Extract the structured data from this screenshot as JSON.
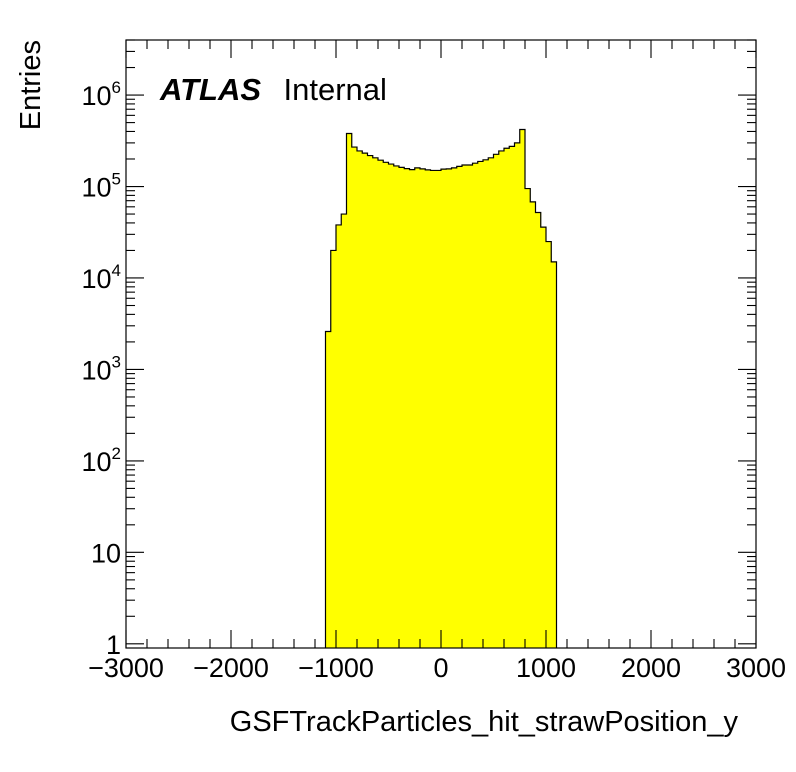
{
  "chart_data": {
    "type": "histogram",
    "xlabel": "GSFTrackParticles_hit_strawPosition_y",
    "ylabel": "Entries",
    "annotation": {
      "experiment": "ATLAS",
      "status": "Internal"
    },
    "xlim": [
      -3000,
      3000
    ],
    "ylim": [
      0.9,
      4000000
    ],
    "yscale": "log",
    "bin_width": 50,
    "x_ticks": [
      {
        "value": -3000,
        "label": "−3000"
      },
      {
        "value": -2000,
        "label": "−2000"
      },
      {
        "value": -1000,
        "label": "−1000"
      },
      {
        "value": 0,
        "label": "0"
      },
      {
        "value": 1000,
        "label": "1000"
      },
      {
        "value": 2000,
        "label": "2000"
      },
      {
        "value": 3000,
        "label": "3000"
      }
    ],
    "y_ticks": [
      {
        "value": 1,
        "base": "1",
        "exp": ""
      },
      {
        "value": 10,
        "base": "10",
        "exp": ""
      },
      {
        "value": 100,
        "base": "10",
        "exp": "2"
      },
      {
        "value": 1000,
        "base": "10",
        "exp": "3"
      },
      {
        "value": 10000,
        "base": "10",
        "exp": "4"
      },
      {
        "value": 100000,
        "base": "10",
        "exp": "5"
      },
      {
        "value": 1000000,
        "base": "10",
        "exp": "6"
      }
    ],
    "fill_color": "#ffff00",
    "line_color": "#000000",
    "grid": false,
    "bins": [
      {
        "x_low": -1100,
        "x_high": -1050,
        "value": 2600
      },
      {
        "x_low": -1050,
        "x_high": -1000,
        "value": 20000
      },
      {
        "x_low": -1000,
        "x_high": -950,
        "value": 38000
      },
      {
        "x_low": -950,
        "x_high": -900,
        "value": 50000
      },
      {
        "x_low": -900,
        "x_high": -850,
        "value": 380000
      },
      {
        "x_low": -850,
        "x_high": -800,
        "value": 270000
      },
      {
        "x_low": -800,
        "x_high": -750,
        "value": 245000
      },
      {
        "x_low": -750,
        "x_high": -700,
        "value": 232000
      },
      {
        "x_low": -700,
        "x_high": -650,
        "value": 218000
      },
      {
        "x_low": -650,
        "x_high": -600,
        "value": 206000
      },
      {
        "x_low": -600,
        "x_high": -550,
        "value": 194000
      },
      {
        "x_low": -550,
        "x_high": -500,
        "value": 184000
      },
      {
        "x_low": -500,
        "x_high": -450,
        "value": 176000
      },
      {
        "x_low": -450,
        "x_high": -400,
        "value": 168000
      },
      {
        "x_low": -400,
        "x_high": -350,
        "value": 162000
      },
      {
        "x_low": -350,
        "x_high": -300,
        "value": 157000
      },
      {
        "x_low": -300,
        "x_high": -250,
        "value": 153000
      },
      {
        "x_low": -250,
        "x_high": -200,
        "value": 160000
      },
      {
        "x_low": -200,
        "x_high": -150,
        "value": 156000
      },
      {
        "x_low": -150,
        "x_high": -100,
        "value": 152000
      },
      {
        "x_low": -100,
        "x_high": -50,
        "value": 150000
      },
      {
        "x_low": -50,
        "x_high": 0,
        "value": 150000
      },
      {
        "x_low": 0,
        "x_high": 50,
        "value": 155000
      },
      {
        "x_low": 50,
        "x_high": 100,
        "value": 156000
      },
      {
        "x_low": 100,
        "x_high": 150,
        "value": 160000
      },
      {
        "x_low": 150,
        "x_high": 200,
        "value": 166000
      },
      {
        "x_low": 200,
        "x_high": 250,
        "value": 172000
      },
      {
        "x_low": 250,
        "x_high": 300,
        "value": 172000
      },
      {
        "x_low": 300,
        "x_high": 350,
        "value": 180000
      },
      {
        "x_low": 350,
        "x_high": 400,
        "value": 188000
      },
      {
        "x_low": 400,
        "x_high": 450,
        "value": 196000
      },
      {
        "x_low": 450,
        "x_high": 500,
        "value": 206000
      },
      {
        "x_low": 500,
        "x_high": 550,
        "value": 225000
      },
      {
        "x_low": 550,
        "x_high": 600,
        "value": 245000
      },
      {
        "x_low": 600,
        "x_high": 650,
        "value": 262000
      },
      {
        "x_low": 650,
        "x_high": 700,
        "value": 275000
      },
      {
        "x_low": 700,
        "x_high": 750,
        "value": 300000
      },
      {
        "x_low": 750,
        "x_high": 800,
        "value": 420000
      },
      {
        "x_low": 800,
        "x_high": 850,
        "value": 95000
      },
      {
        "x_low": 850,
        "x_high": 900,
        "value": 68000
      },
      {
        "x_low": 900,
        "x_high": 950,
        "value": 52000
      },
      {
        "x_low": 950,
        "x_high": 1000,
        "value": 36000
      },
      {
        "x_low": 1000,
        "x_high": 1050,
        "value": 25000
      },
      {
        "x_low": 1050,
        "x_high": 1100,
        "value": 15000
      }
    ]
  }
}
